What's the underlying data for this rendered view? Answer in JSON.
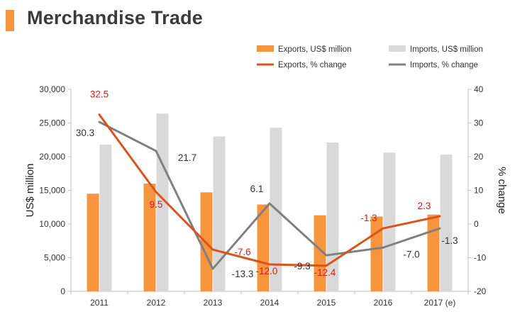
{
  "header": {
    "title": "Merchandise Trade"
  },
  "colors": {
    "accent": "#f7943e",
    "exports_bar": "#f7943e",
    "imports_bar": "#d9d9d9",
    "exports_line": "#d9531e",
    "imports_line": "#808080",
    "exports_label": "#d0201a",
    "imports_label": "#333333"
  },
  "chart_data": {
    "type": "bar",
    "combo": "bar+line",
    "categories": [
      "2011",
      "2012",
      "2013",
      "2014",
      "2015",
      "2016",
      "2017 (e)"
    ],
    "ylabel": "US$ million",
    "y2label": "% change",
    "ylim": [
      0,
      30000
    ],
    "yticks": [
      "0",
      "5,000",
      "10,000",
      "15,000",
      "20,000",
      "25,000",
      "30,000"
    ],
    "y2lim": [
      -20,
      40
    ],
    "y2ticks": [
      "-20",
      "-10",
      "0",
      "10",
      "20",
      "30",
      "40"
    ],
    "legend_position": "top-right",
    "grid": false,
    "series": [
      {
        "name": "Exports, US$ million",
        "type": "bar",
        "axis": "left",
        "values": [
          14500,
          16000,
          14700,
          12900,
          11300,
          11100,
          11400
        ]
      },
      {
        "name": "Imports, US$ million",
        "type": "bar",
        "axis": "left",
        "values": [
          21800,
          26400,
          23000,
          24300,
          22100,
          20600,
          20300
        ]
      },
      {
        "name": "Exports, % change",
        "type": "line",
        "axis": "right",
        "values": [
          32.5,
          9.5,
          -7.6,
          -12.0,
          -12.4,
          -1.3,
          2.3
        ],
        "labels": [
          "32.5",
          "9.5",
          "-7.6",
          "-12.0",
          "-12.4",
          "-1.3",
          "2.3"
        ]
      },
      {
        "name": "Imports, % change",
        "type": "line",
        "axis": "right",
        "values": [
          30.3,
          21.7,
          -13.3,
          6.1,
          -9.3,
          -7.0,
          -1.3
        ],
        "labels": [
          "30.3",
          "21.7",
          "-13.3",
          "6.1",
          "-9.3",
          "-7.0",
          "-1.3"
        ]
      }
    ]
  }
}
